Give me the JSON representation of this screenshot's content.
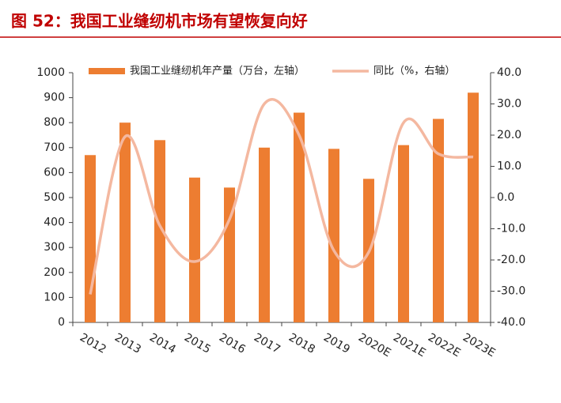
{
  "chart_data": {
    "type": "bar-line",
    "title": "图 52：我国工业缝纫机市场有望恢复向好",
    "categories": [
      "2012",
      "2013",
      "2014",
      "2015",
      "2016",
      "2017",
      "2018",
      "2019",
      "2020E",
      "2021E",
      "2022E",
      "2023E"
    ],
    "series": [
      {
        "name": "我国工业缝纫机年产量（万台，左轴）",
        "color": "#ED7D31",
        "type": "bar",
        "values": [
          670,
          800,
          730,
          580,
          540,
          700,
          840,
          695,
          575,
          710,
          815,
          920
        ]
      },
      {
        "name": "同比（%，右轴）",
        "color": "#F4B8A0",
        "type": "line",
        "axis": "y2",
        "values": [
          -31,
          19.5,
          -9,
          -20.5,
          -7,
          30,
          20,
          -17,
          -17.5,
          24,
          14,
          13
        ]
      }
    ],
    "ylim": [
      0,
      1000
    ],
    "yticks": [
      0,
      100,
      200,
      300,
      400,
      500,
      600,
      700,
      800,
      900,
      1000
    ],
    "y2lim": [
      -40,
      40
    ],
    "y2ticks": [
      {
        "value": -40,
        "label": "-40.0"
      },
      {
        "value": -30,
        "label": "-30.0"
      },
      {
        "value": -20,
        "label": "-20.0"
      },
      {
        "value": -10,
        "label": "-10.0"
      },
      {
        "value": 0,
        "label": "0.0"
      },
      {
        "value": 10,
        "label": "10.0"
      },
      {
        "value": 20,
        "label": "20.0"
      },
      {
        "value": 30,
        "label": "30.0"
      },
      {
        "value": 40,
        "label": "40.0"
      }
    ]
  }
}
